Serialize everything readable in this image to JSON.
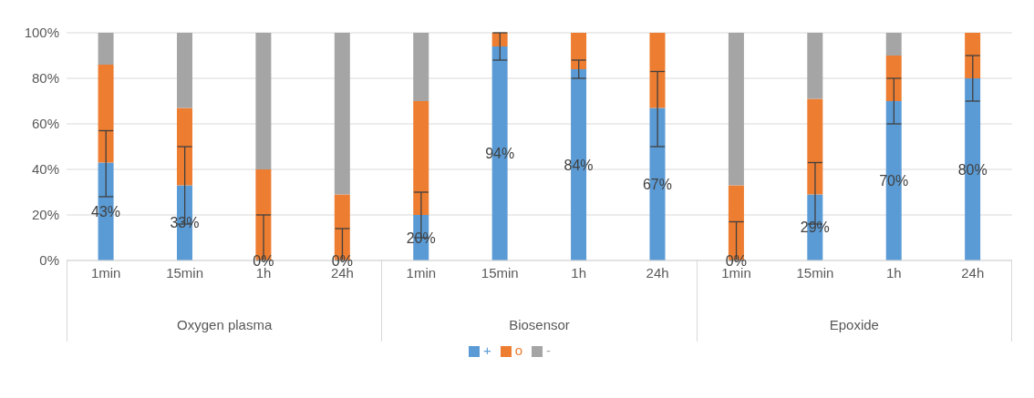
{
  "chart_data": {
    "type": "bar",
    "stacked": true,
    "categories": [
      "1min",
      "15min",
      "1h",
      "24h",
      "1min",
      "15min",
      "1h",
      "24h",
      "1min",
      "15min",
      "1h",
      "24h"
    ],
    "annotations": [
      "Oxygen plasma",
      "Biosensor",
      "Epoxide"
    ],
    "series": [
      {
        "name": "+",
        "color": "#5b9bd5",
        "values": [
          43,
          33,
          0,
          0,
          20,
          94,
          84,
          67,
          0,
          29,
          70,
          80
        ],
        "value_labels": [
          "43%",
          "33%",
          "0%",
          "0%",
          "20%",
          "94%",
          "84%",
          "67%",
          "0%",
          "29%",
          "70%",
          "80%"
        ],
        "errors": [
          [
            28,
            57
          ],
          [
            16,
            50
          ],
          [
            0,
            20
          ],
          [
            0,
            14
          ],
          [
            10,
            30
          ],
          [
            88,
            100
          ],
          [
            80,
            88
          ],
          [
            50,
            83
          ],
          [
            0,
            17
          ],
          [
            16,
            43
          ],
          [
            60,
            80
          ],
          [
            70,
            90
          ]
        ]
      },
      {
        "name": "o",
        "color": "#ed7d31",
        "values": [
          43,
          34,
          40,
          29,
          50,
          6,
          16,
          33,
          33,
          42,
          20,
          20
        ]
      },
      {
        "name": "-",
        "color": "#a5a5a5",
        "values": [
          14,
          33,
          60,
          71,
          30,
          0,
          0,
          0,
          67,
          29,
          10,
          0
        ]
      }
    ],
    "ylim": [
      0,
      100
    ],
    "yticks": [
      {
        "value": 0,
        "label": "0%"
      },
      {
        "value": 20,
        "label": "20%"
      },
      {
        "value": 40,
        "label": "40%"
      },
      {
        "value": 60,
        "label": "60%"
      },
      {
        "value": 80,
        "label": "80%"
      },
      {
        "value": 100,
        "label": "100%"
      }
    ],
    "grid": "y",
    "legend": "bottom"
  }
}
